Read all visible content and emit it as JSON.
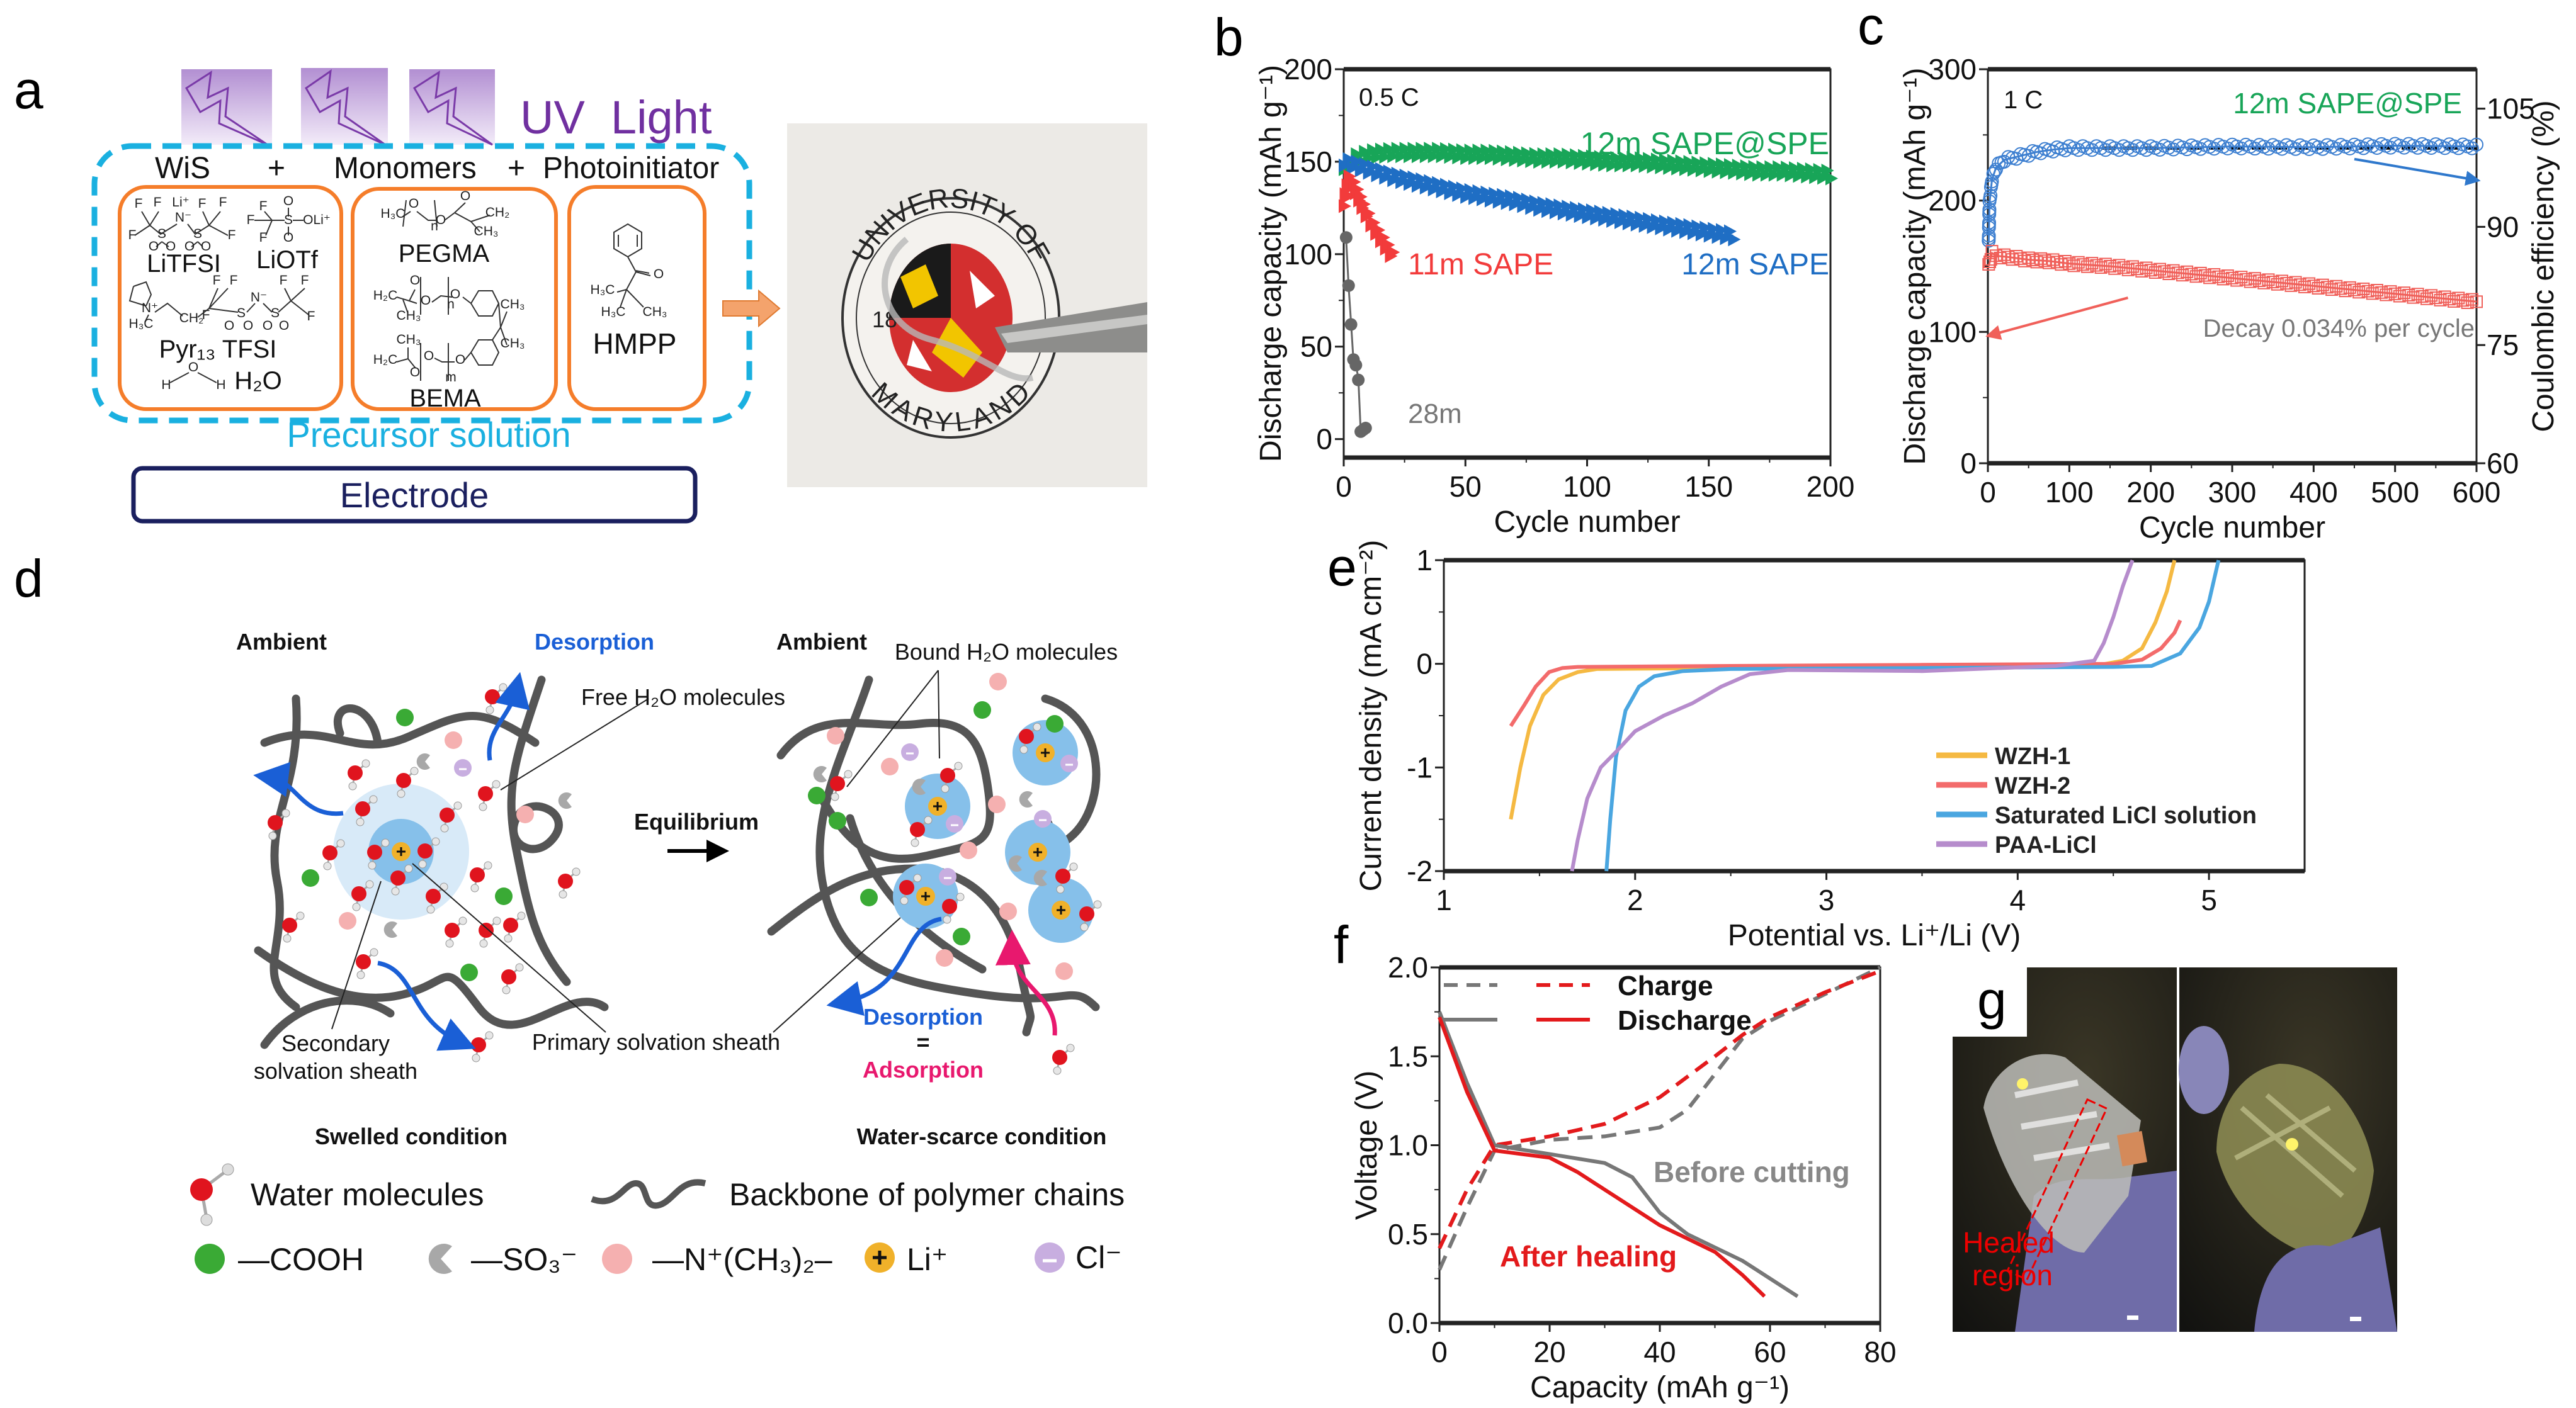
{
  "panel_labels": {
    "a": "a",
    "b": "b",
    "c": "c",
    "d": "d",
    "e": "e",
    "f": "f",
    "g": "g"
  },
  "a": {
    "uv_light": "UV  Light",
    "wis": "WiS",
    "plus1": "+",
    "monomers": "Monomers",
    "plus2": "+",
    "photoinitiator": "Photoinitiator",
    "litfsi": "LiTFSI",
    "liotf": "LiOTf",
    "pyr13tfsi": "Pyr₁₃ TFSI",
    "h2o": "H₂O",
    "pegma": "PEGMA",
    "bema": "BEMA",
    "hmpp": "HMPP",
    "precursor": "Precursor solution",
    "electrode": "Electrode",
    "atoms": {
      "litfsi": [
        "F",
        "F",
        "Li⁺",
        "F",
        "F",
        "N⁻",
        "F",
        "S",
        "S",
        "F",
        "O",
        "O",
        "O",
        "O"
      ],
      "liotf": [
        "F",
        "O",
        "F",
        "S",
        "OLi⁺",
        "F",
        "O"
      ],
      "pyr": [
        "N⁺",
        "H₃C",
        "CH₂",
        "F",
        "F",
        "F",
        "N⁻",
        "S",
        "S",
        "F",
        "F",
        "F",
        "O",
        "O",
        "O",
        "O"
      ],
      "water": [
        "O",
        "H",
        "H"
      ],
      "pegma": [
        "H₃C",
        "O",
        "O",
        "n",
        "O",
        "CH₂",
        "CH₃"
      ],
      "bema": [
        "O",
        "H₂C",
        "O",
        "CH₃",
        "O",
        "CH₃",
        "CH₃",
        "CH₃",
        "H₂C",
        "O",
        "O",
        "O",
        "n",
        "m"
      ],
      "hmpp": [
        "O",
        "H₃C",
        "H₃C",
        "CH₃"
      ]
    },
    "photo_seal": {
      "top": "UNIVERSITY OF",
      "bottom": "MARYLAND",
      "year": "18"
    }
  },
  "d": {
    "ambient_left": "Ambient",
    "desorption_top": "Desorption",
    "ambient_right": "Ambient",
    "bound_h2o": "Bound H₂O molecules",
    "free_h2o": "Free H₂O molecules",
    "equilibrium": "Equilibrium",
    "secondary_1": "Secondary",
    "secondary_2": "solvation sheath",
    "primary": "Primary solvation sheath",
    "desorption_bottom": "Desorption",
    "equals": "=",
    "adsorption": "Adsorption",
    "swelled": "Swelled condition",
    "water_scarce": "Water-scarce condition",
    "legend": {
      "water": "Water molecules",
      "backbone": "Backbone of polymer chains",
      "cooh": "—COOH",
      "so3": "—SO₃⁻",
      "n_ch3": "—N⁺(CH₃)₂–",
      "li": "Li⁺",
      "cl": "Cl⁻"
    },
    "colors": {
      "water_o": "#e0141e",
      "cooh": "#3aaa35",
      "so3": "#a8a8a8",
      "n_ch3": "#f5b0b0",
      "li": "#f0b12a",
      "cl": "#c8aee0",
      "desorption": "#1a5fd6",
      "adsorption": "#e8186e",
      "polymer": "#555555"
    }
  },
  "g": {
    "healed_1": "Healed",
    "healed_2": "region"
  },
  "chart_data": [
    {
      "id": "b",
      "type": "line",
      "title": "",
      "xlabel": "Cycle number",
      "ylabel": "Discharge capacity (mAh g⁻¹)",
      "xlim": [
        0,
        200
      ],
      "ylim": [
        -10,
        200
      ],
      "x_ticks": [
        0,
        50,
        100,
        150,
        200
      ],
      "x_tick_labels": [
        "0",
        "50",
        "100",
        "150",
        "200"
      ],
      "y_ticks": [
        0,
        50,
        100,
        150,
        200
      ],
      "y_tick_labels": [
        "0",
        "50",
        "100",
        "150",
        "200"
      ],
      "annotations": [
        "0.5 C",
        "12m SAPE@SPE",
        "11m SAPE",
        "12m SAPE",
        "28m"
      ],
      "series": [
        {
          "name": "12m SAPE@SPE",
          "color": "#18a558",
          "marker": "triangle",
          "axis": "left",
          "x": [
            0,
            5,
            10,
            20,
            30,
            40,
            50,
            60,
            70,
            80,
            90,
            100,
            110,
            120,
            130,
            140,
            150,
            160,
            170,
            180,
            190,
            200
          ],
          "y": [
            148,
            152,
            154,
            155,
            155,
            155,
            154,
            154,
            153,
            152,
            152,
            151,
            150,
            150,
            149,
            148,
            147,
            146,
            145,
            145,
            144,
            143
          ]
        },
        {
          "name": "12m SAPE",
          "color": "#1f6ec4",
          "marker": "triangle",
          "axis": "left",
          "x": [
            0,
            5,
            10,
            20,
            30,
            40,
            50,
            60,
            70,
            80,
            90,
            100,
            110,
            120,
            130,
            140,
            150,
            160
          ],
          "y": [
            150,
            148,
            146,
            142,
            139,
            136,
            133,
            131,
            129,
            126,
            124,
            122,
            120,
            118,
            116,
            114,
            112,
            110
          ]
        },
        {
          "name": "11m SAPE",
          "color": "#f23b3b",
          "marker": "triangle",
          "axis": "left",
          "x": [
            0,
            2,
            4,
            6,
            8,
            10,
            12,
            14,
            16,
            18,
            20
          ],
          "y": [
            128,
            140,
            137,
            131,
            125,
            120,
            115,
            111,
            107,
            103,
            99
          ]
        },
        {
          "name": "28m",
          "color": "#666666",
          "marker": "circle",
          "axis": "left",
          "x": [
            1,
            2,
            3,
            4,
            5,
            6,
            7,
            8,
            9
          ],
          "y": [
            108,
            83,
            63,
            42,
            40,
            33,
            3,
            5,
            7
          ]
        }
      ]
    },
    {
      "id": "c",
      "type": "scatter",
      "title": "",
      "xlabel": "Cycle number",
      "ylabel": "Discharge capacity (mAh g⁻¹)",
      "ylabel_right": "Coulombic efficiency (%)",
      "xlim": [
        0,
        600
      ],
      "ylim": [
        0,
        300
      ],
      "ylim_right": [
        60,
        110
      ],
      "x_ticks": [
        0,
        100,
        200,
        300,
        400,
        500,
        600
      ],
      "x_tick_labels": [
        "0",
        "100",
        "200",
        "300",
        "400",
        "500",
        "600"
      ],
      "y_ticks": [
        0,
        100,
        200,
        300
      ],
      "y_tick_labels": [
        "0",
        "100",
        "200",
        "300"
      ],
      "y_ticks_right": [
        60,
        75,
        90,
        105
      ],
      "y_tick_labels_right": [
        "60",
        "75",
        "90",
        "105"
      ],
      "annotations": [
        "1 C",
        "12m SAPE@SPE",
        "Decay 0.034% per cycle"
      ],
      "reference_line": {
        "axis": "right",
        "y": 100,
        "x": [
          140,
          600
        ],
        "color": "#000000"
      },
      "series": [
        {
          "name": "Coulombic efficiency",
          "color": "#3d7fd0",
          "marker": "open-circle",
          "axis": "right",
          "x": [
            1,
            2,
            5,
            10,
            20,
            40,
            60,
            80,
            100,
            150,
            200,
            300,
            400,
            500,
            600
          ],
          "y": [
            88,
            93,
            96,
            97.5,
            98.5,
            99,
            99.5,
            99.8,
            100,
            100,
            100,
            100.2,
            100.1,
            100.3,
            100.2
          ]
        },
        {
          "name": "Discharge capacity",
          "color": "#f0605a",
          "marker": "open-square",
          "axis": "left",
          "x": [
            1,
            5,
            10,
            25,
            50,
            75,
            100,
            150,
            200,
            250,
            300,
            350,
            400,
            450,
            500,
            550,
            600
          ],
          "y": [
            150,
            160,
            158,
            157,
            155,
            154,
            152,
            150,
            147,
            144,
            141,
            138,
            135,
            132,
            129,
            126,
            123
          ]
        }
      ]
    },
    {
      "id": "e",
      "type": "line",
      "title": "",
      "xlabel": "Potential vs. Li⁺/Li (V)",
      "ylabel": "Current density (mA cm⁻²)",
      "xlim": [
        1,
        5.5
      ],
      "ylim": [
        -2,
        1
      ],
      "x_ticks": [
        1,
        2,
        3,
        4,
        5
      ],
      "x_tick_labels": [
        "1",
        "2",
        "3",
        "4",
        "5"
      ],
      "y_ticks": [
        -2,
        -1,
        0,
        1
      ],
      "y_tick_labels": [
        "-2",
        "-1",
        "0",
        "1"
      ],
      "legend_position": "bottom-right",
      "series": [
        {
          "name": "WZH-1",
          "color": "#f5b942",
          "marker": "none",
          "axis": "left",
          "x": [
            1.35,
            1.4,
            1.45,
            1.52,
            1.6,
            1.7,
            1.8,
            2.5,
            3.5,
            4.4,
            4.55,
            4.65,
            4.72,
            4.78,
            4.82
          ],
          "y": [
            -1.5,
            -1.0,
            -0.6,
            -0.3,
            -0.15,
            -0.08,
            -0.05,
            -0.04,
            -0.03,
            -0.02,
            0.03,
            0.15,
            0.4,
            0.7,
            1.0
          ]
        },
        {
          "name": "WZH-2",
          "color": "#f36b6b",
          "marker": "none",
          "axis": "left",
          "x": [
            1.35,
            1.42,
            1.48,
            1.55,
            1.62,
            1.7,
            2.5,
            3.5,
            4.5,
            4.65,
            4.75,
            4.82,
            4.85
          ],
          "y": [
            -0.6,
            -0.4,
            -0.22,
            -0.08,
            -0.04,
            -0.03,
            -0.02,
            -0.01,
            0.0,
            0.04,
            0.15,
            0.3,
            0.42
          ]
        },
        {
          "name": "Saturated LiCl solution",
          "color": "#4aa6e0",
          "marker": "none",
          "axis": "left",
          "x": [
            1.85,
            1.87,
            1.9,
            1.95,
            2.02,
            2.1,
            2.25,
            2.5,
            3.5,
            4.5,
            4.7,
            4.85,
            4.95,
            5.0,
            5.05
          ],
          "y": [
            -2,
            -1.5,
            -0.9,
            -0.45,
            -0.22,
            -0.12,
            -0.07,
            -0.05,
            -0.04,
            -0.03,
            -0.02,
            0.1,
            0.35,
            0.6,
            1.0
          ]
        },
        {
          "name": "PAA-LiCl",
          "color": "#b68ccc",
          "marker": "none",
          "axis": "left",
          "x": [
            1.67,
            1.7,
            1.75,
            1.82,
            1.9,
            2.0,
            2.15,
            2.3,
            2.45,
            2.6,
            2.8,
            3.5,
            4.2,
            4.4,
            4.45,
            4.5,
            4.55,
            4.6
          ],
          "y": [
            -2,
            -1.7,
            -1.3,
            -1.0,
            -0.85,
            -0.65,
            -0.5,
            -0.38,
            -0.22,
            -0.1,
            -0.06,
            -0.07,
            -0.02,
            0.03,
            0.2,
            0.45,
            0.75,
            1.0
          ]
        }
      ]
    },
    {
      "id": "f",
      "type": "line",
      "title": "",
      "xlabel": "Capacity (mAh g⁻¹)",
      "ylabel": "Voltage (V)",
      "xlim": [
        0,
        80
      ],
      "ylim": [
        0,
        2
      ],
      "x_ticks": [
        0,
        20,
        40,
        60,
        80
      ],
      "x_tick_labels": [
        "0",
        "20",
        "40",
        "60",
        "80"
      ],
      "y_ticks": [
        0,
        0.5,
        1,
        1.5,
        2
      ],
      "y_tick_labels": [
        "0.0",
        "0.5",
        "1.0",
        "1.5",
        "2.0"
      ],
      "legend_position": "top-left",
      "legend": [
        "Charge",
        "Discharge"
      ],
      "annotations": [
        "Before cutting",
        "After healing"
      ],
      "series": [
        {
          "name": "Charge (before cutting)",
          "color": "#777777",
          "dash": true,
          "marker": "none",
          "axis": "left",
          "x": [
            0,
            5,
            10,
            20,
            30,
            40,
            45,
            50,
            55,
            60,
            70,
            80
          ],
          "y": [
            0.3,
            0.65,
            0.97,
            1.03,
            1.05,
            1.1,
            1.2,
            1.4,
            1.6,
            1.7,
            1.85,
            2.0
          ]
        },
        {
          "name": "Charge (after healing)",
          "color": "#e31a1c",
          "dash": true,
          "marker": "none",
          "axis": "left",
          "x": [
            0,
            5,
            10,
            20,
            30,
            40,
            50,
            55,
            60,
            70,
            80
          ],
          "y": [
            0.42,
            0.75,
            1.0,
            1.05,
            1.12,
            1.27,
            1.5,
            1.62,
            1.72,
            1.86,
            1.98
          ]
        },
        {
          "name": "Discharge (before cutting)",
          "color": "#777777",
          "marker": "none",
          "axis": "left",
          "x": [
            0,
            5,
            10,
            20,
            30,
            35,
            40,
            45,
            55,
            65
          ],
          "y": [
            1.75,
            1.35,
            1.0,
            0.95,
            0.9,
            0.82,
            0.62,
            0.5,
            0.35,
            0.15
          ]
        },
        {
          "name": "Discharge (after healing)",
          "color": "#e31a1c",
          "marker": "none",
          "axis": "left",
          "x": [
            0,
            5,
            10,
            20,
            25,
            30,
            40,
            50,
            55,
            59
          ],
          "y": [
            1.72,
            1.3,
            0.97,
            0.93,
            0.85,
            0.75,
            0.55,
            0.4,
            0.27,
            0.15
          ]
        }
      ]
    }
  ]
}
